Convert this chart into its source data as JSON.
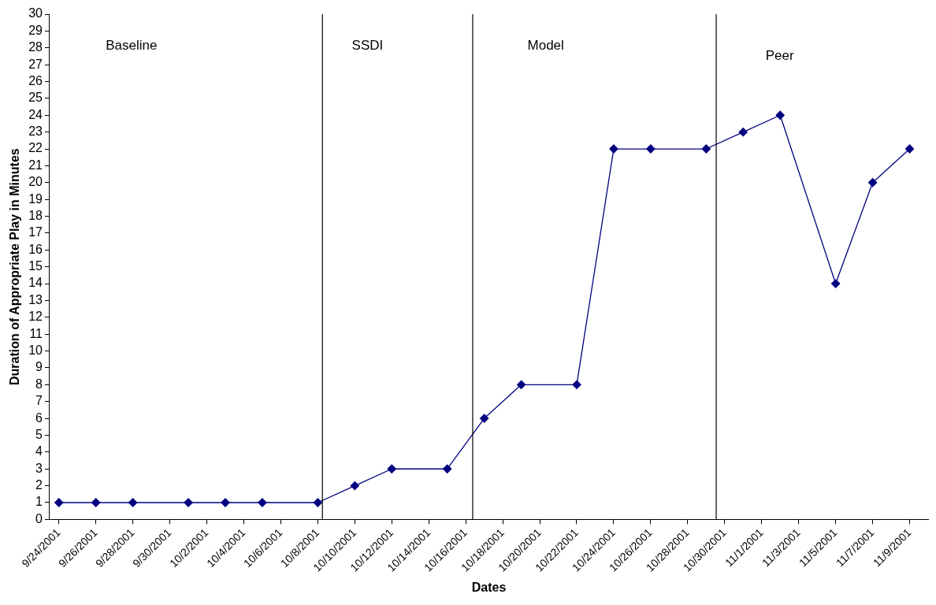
{
  "chart_data": {
    "type": "line",
    "xlabel": "Dates",
    "ylabel": "Duration of Appropriate Play in Minutes",
    "x": [
      "2001-09-24",
      "2001-09-26",
      "2001-09-28",
      "2001-10-01",
      "2001-10-03",
      "2001-10-05",
      "2001-10-08",
      "2001-10-10",
      "2001-10-12",
      "2001-10-15",
      "2001-10-17",
      "2001-10-19",
      "2001-10-22",
      "2001-10-24",
      "2001-10-26",
      "2001-10-29",
      "2001-10-31",
      "2001-11-02",
      "2001-11-05",
      "2001-11-07",
      "2001-11-09"
    ],
    "series": [
      {
        "color": "#000080",
        "values": [
          1,
          1,
          1,
          1,
          1,
          1,
          1,
          2,
          3,
          3,
          6,
          8,
          8,
          22,
          22,
          22,
          23,
          24,
          14,
          20,
          22
        ]
      }
    ],
    "marker": "diamond",
    "line_style": "solid",
    "grid": false,
    "legend": false,
    "xlim": [
      "2001-09-23T12:00",
      "2001-11-10"
    ],
    "xticks": [
      {
        "value": "2001-09-24",
        "label": "9/24/2001"
      },
      {
        "value": "2001-09-26",
        "label": "9/26/2001"
      },
      {
        "value": "2001-09-28",
        "label": "9/28/2001"
      },
      {
        "value": "2001-09-30",
        "label": "9/30/2001"
      },
      {
        "value": "2001-10-02",
        "label": "10/2/2001"
      },
      {
        "value": "2001-10-04",
        "label": "10/4/2001"
      },
      {
        "value": "2001-10-06",
        "label": "10/6/2001"
      },
      {
        "value": "2001-10-08",
        "label": "10/8/2001"
      },
      {
        "value": "2001-10-10",
        "label": "10/10/2001"
      },
      {
        "value": "2001-10-12",
        "label": "10/12/2001"
      },
      {
        "value": "2001-10-14",
        "label": "10/14/2001"
      },
      {
        "value": "2001-10-16",
        "label": "10/16/2001"
      },
      {
        "value": "2001-10-18",
        "label": "10/18/2001"
      },
      {
        "value": "2001-10-20",
        "label": "10/20/2001"
      },
      {
        "value": "2001-10-22",
        "label": "10/22/2001"
      },
      {
        "value": "2001-10-24",
        "label": "10/24/2001"
      },
      {
        "value": "2001-10-26",
        "label": "10/26/2001"
      },
      {
        "value": "2001-10-28",
        "label": "10/28/2001"
      },
      {
        "value": "2001-10-30",
        "label": "10/30/2001"
      },
      {
        "value": "2001-11-01",
        "label": "11/1/2001"
      },
      {
        "value": "2001-11-03",
        "label": "11/3/2001"
      },
      {
        "value": "2001-11-05",
        "label": "11/5/2001"
      },
      {
        "value": "2001-11-07",
        "label": "11/7/2001"
      },
      {
        "value": "2001-11-09",
        "label": "11/9/2001"
      }
    ],
    "ylim": [
      0,
      30
    ],
    "yticks": [
      0,
      1,
      2,
      3,
      4,
      5,
      6,
      7,
      8,
      9,
      10,
      11,
      12,
      13,
      14,
      15,
      16,
      17,
      18,
      19,
      20,
      21,
      22,
      23,
      24,
      25,
      26,
      27,
      28,
      29,
      30
    ],
    "ref_lines": [
      {
        "axis": "x",
        "value": "2001-10-08T06:00",
        "color": "#000000"
      },
      {
        "axis": "x",
        "value": "2001-10-16T09:00",
        "color": "#000000"
      },
      {
        "axis": "x",
        "value": "2001-10-29T13:00",
        "color": "#000000"
      }
    ],
    "annotations": [
      "Baseline",
      "SSDI",
      "Model",
      "Peer"
    ]
  }
}
